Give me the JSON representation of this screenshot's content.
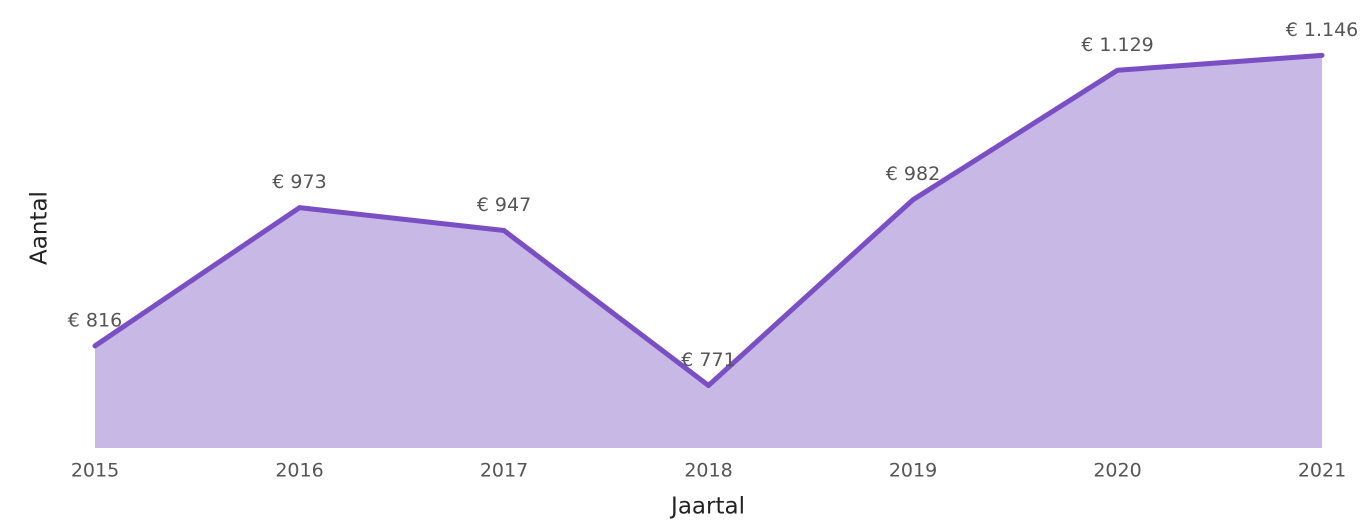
{
  "chart_data": {
    "type": "area",
    "x_label": "Jaartal",
    "y_label": "Aantal",
    "categories": [
      "2015",
      "2016",
      "2017",
      "2018",
      "2019",
      "2020",
      "2021"
    ],
    "series": [
      {
        "name": "Aantal",
        "color": "#7b4fc4",
        "fill": "#c7b8e5",
        "values": [
          816,
          973,
          947,
          771,
          982,
          1129,
          1146
        ],
        "value_labels": [
          "€ 816",
          "€ 973",
          "€ 947",
          "€ 771",
          "€ 982",
          "€ 1.129",
          "€ 1.146"
        ]
      }
    ],
    "ylim": [
      700,
      1160
    ]
  }
}
